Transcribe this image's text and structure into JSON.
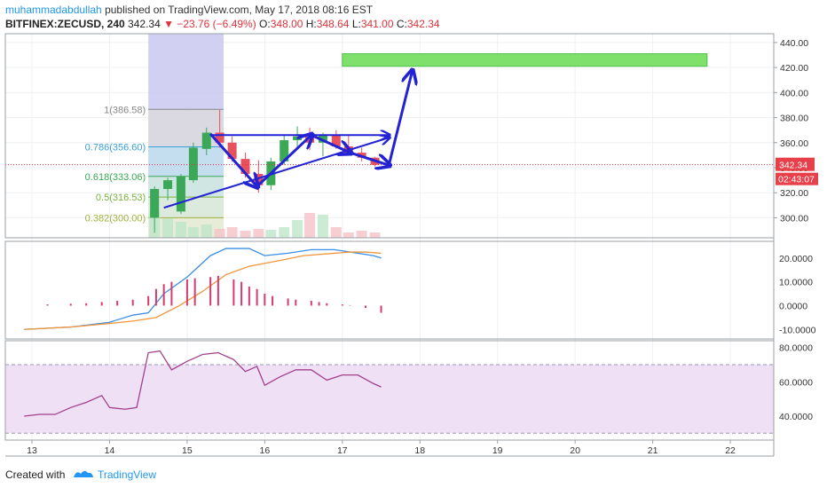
{
  "header": {
    "author": "muhammadabdullah",
    "published": " published on TradingView.com, May 17, 2018 08:16 EST",
    "symbol": "BITFINEX:ZECUSD, 240",
    "last": "342.34",
    "change": "▼ −23.76 (−6.49%)",
    "o_label": "O:",
    "o": "348.00",
    "h_label": "H:",
    "h": "348.64",
    "l_label": "L:",
    "l": "341.00",
    "c_label": "C:",
    "c": "342.34"
  },
  "footer": {
    "created_with": "Created with",
    "brand": "TradingView"
  },
  "colors": {
    "up": "#3aa856",
    "down": "#e8505e",
    "blue_line": "#3a8ee6",
    "orange_line": "#f0963c",
    "rsi": "#a0408a",
    "arrows": "#2323d4",
    "target_zone": "#7fe06b",
    "axis_text": "#333333"
  },
  "chart_data": [
    {
      "type": "candlestick",
      "x_ticks": [
        "13",
        "14",
        "15",
        "16",
        "17",
        "18",
        "19",
        "20",
        "21",
        "22"
      ],
      "y_ticks": [
        "440.00",
        "420.00",
        "400.00",
        "380.00",
        "360.00",
        "340.00",
        "320.00",
        "300.00"
      ],
      "ylim": [
        284,
        447
      ],
      "last_price_label": "342.34",
      "countdown_label": "02:43:07",
      "ohlc": [
        [
          14.58,
          300,
          325,
          288,
          323
        ],
        [
          14.75,
          323,
          332,
          314,
          330
        ],
        [
          14.92,
          305,
          335,
          303,
          333
        ],
        [
          15.08,
          330,
          360,
          328,
          356
        ],
        [
          15.25,
          355,
          372,
          350,
          368
        ],
        [
          15.42,
          368,
          386,
          356,
          360
        ],
        [
          15.58,
          360,
          365,
          345,
          347
        ],
        [
          15.75,
          347,
          352,
          332,
          335
        ],
        [
          15.92,
          335,
          346,
          320,
          326
        ],
        [
          16.08,
          326,
          348,
          322,
          345
        ],
        [
          16.25,
          345,
          366,
          342,
          362
        ],
        [
          16.42,
          362,
          373,
          356,
          365
        ],
        [
          16.58,
          365,
          372,
          354,
          360
        ],
        [
          16.75,
          360,
          368,
          349,
          366
        ],
        [
          16.92,
          366,
          370,
          355,
          357
        ],
        [
          17.08,
          357,
          366,
          350,
          352
        ],
        [
          17.25,
          352,
          356,
          345,
          348
        ],
        [
          17.42,
          348,
          348.64,
          341,
          342.34
        ]
      ],
      "fibonacci": [
        {
          "label": "1(386.58)",
          "level": 386.58
        },
        {
          "label": "0.786(356.60)",
          "level": 356.6
        },
        {
          "label": "0.618(333.06)",
          "level": 333.06
        },
        {
          "label": "0.5(316.53)",
          "level": 316.53
        },
        {
          "label": "0.382(300.00)",
          "level": 300.0
        }
      ],
      "annotations": {
        "target_zone": {
          "x": [
            17.0,
            21.7
          ],
          "y": [
            421,
            431
          ]
        },
        "resistance": {
          "x": [
            15.3,
            17.6
          ],
          "y": 366
        },
        "support": [
          [
            14.7,
            308
          ],
          [
            17.6,
            364
          ]
        ],
        "path": [
          [
            15.3,
            367
          ],
          [
            15.9,
            325
          ],
          [
            16.6,
            366
          ],
          [
            17.1,
            352
          ],
          [
            17.6,
            342
          ]
        ],
        "breakout": [
          [
            17.6,
            342
          ],
          [
            17.9,
            417
          ]
        ]
      }
    },
    {
      "type": "line",
      "name": "MACD",
      "y_ticks": [
        "20.0000",
        "10.0000",
        "0.0000",
        "-10.0000"
      ],
      "ylim": [
        -14,
        27
      ],
      "macd": [
        [
          12.9,
          -10
        ],
        [
          13.5,
          -9
        ],
        [
          14.0,
          -7
        ],
        [
          14.3,
          -4
        ],
        [
          14.5,
          -3
        ],
        [
          14.7,
          5
        ],
        [
          15.0,
          12
        ],
        [
          15.3,
          21
        ],
        [
          15.5,
          24
        ],
        [
          15.8,
          24
        ],
        [
          16.0,
          21
        ],
        [
          16.3,
          22
        ],
        [
          16.6,
          23.5
        ],
        [
          16.9,
          23.5
        ],
        [
          17.1,
          22.5
        ],
        [
          17.4,
          21
        ],
        [
          17.5,
          20
        ]
      ],
      "signal": [
        [
          12.9,
          -10
        ],
        [
          13.5,
          -9
        ],
        [
          14.0,
          -7.5
        ],
        [
          14.3,
          -6.5
        ],
        [
          14.6,
          -5
        ],
        [
          14.9,
          0
        ],
        [
          15.2,
          6
        ],
        [
          15.5,
          13
        ],
        [
          15.8,
          16.5
        ],
        [
          16.2,
          19
        ],
        [
          16.5,
          21
        ],
        [
          16.9,
          22
        ],
        [
          17.1,
          22.5
        ],
        [
          17.3,
          22.5
        ],
        [
          17.5,
          22
        ]
      ],
      "histogram": [
        [
          12.9,
          0
        ],
        [
          13.2,
          0.5
        ],
        [
          13.5,
          0.8
        ],
        [
          13.7,
          1
        ],
        [
          13.9,
          1.5
        ],
        [
          14.1,
          2
        ],
        [
          14.3,
          2.5
        ],
        [
          14.5,
          4
        ],
        [
          14.6,
          7
        ],
        [
          14.7,
          9
        ],
        [
          14.8,
          10
        ],
        [
          15.0,
          11
        ],
        [
          15.1,
          11.5
        ],
        [
          15.3,
          12
        ],
        [
          15.4,
          12.5
        ],
        [
          15.6,
          11
        ],
        [
          15.7,
          10
        ],
        [
          15.8,
          8
        ],
        [
          15.9,
          7
        ],
        [
          16.0,
          5
        ],
        [
          16.1,
          4
        ],
        [
          16.3,
          3
        ],
        [
          16.4,
          2.5
        ],
        [
          16.6,
          2
        ],
        [
          16.7,
          1.5
        ],
        [
          16.8,
          1
        ],
        [
          17.0,
          0.5
        ],
        [
          17.1,
          0.2
        ],
        [
          17.3,
          -1
        ],
        [
          17.5,
          -3
        ]
      ]
    },
    {
      "type": "line",
      "name": "RSI",
      "y_ticks": [
        "80.0000",
        "60.0000",
        "40.0000"
      ],
      "ylim": [
        26,
        84
      ],
      "bands": [
        30,
        70
      ],
      "values": [
        [
          12.9,
          40
        ],
        [
          13.1,
          41
        ],
        [
          13.3,
          41
        ],
        [
          13.5,
          45
        ],
        [
          13.7,
          48
        ],
        [
          13.9,
          52
        ],
        [
          14.0,
          45
        ],
        [
          14.2,
          44
        ],
        [
          14.35,
          45
        ],
        [
          14.5,
          77
        ],
        [
          14.65,
          78
        ],
        [
          14.8,
          67
        ],
        [
          15.0,
          72
        ],
        [
          15.2,
          76
        ],
        [
          15.4,
          77
        ],
        [
          15.6,
          73
        ],
        [
          15.75,
          66
        ],
        [
          15.9,
          69
        ],
        [
          16.0,
          58
        ],
        [
          16.2,
          63
        ],
        [
          16.4,
          67
        ],
        [
          16.6,
          67
        ],
        [
          16.8,
          61
        ],
        [
          17.0,
          64
        ],
        [
          17.2,
          64
        ],
        [
          17.4,
          59
        ],
        [
          17.5,
          57
        ]
      ]
    }
  ]
}
